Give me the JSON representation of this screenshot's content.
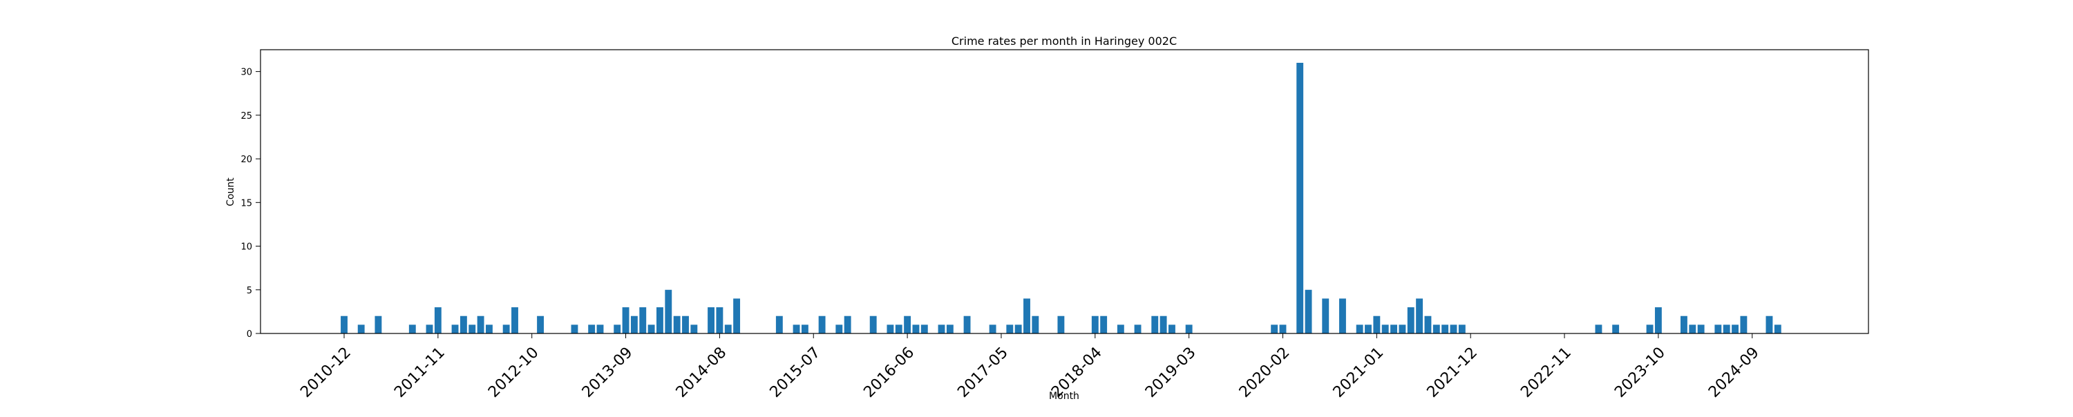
{
  "chart_data": {
    "type": "bar",
    "title": "Crime rates per month in Haringey 002C",
    "xlabel": "Month",
    "ylabel": "Count",
    "ylim": [
      0,
      32.5
    ],
    "yticks": [
      0,
      5,
      10,
      15,
      20,
      25,
      30
    ],
    "xtick_labels": [
      "2010-12",
      "2011-11",
      "2012-10",
      "2013-09",
      "2014-08",
      "2015-07",
      "2016-06",
      "2017-05",
      "2018-04",
      "2019-03",
      "2020-02",
      "2021-01",
      "2021-12",
      "2022-11",
      "2023-10",
      "2024-09"
    ],
    "grid": false,
    "bar_color": "#1f77b4",
    "categories": [
      "2010-12",
      "2011-02",
      "2011-04",
      "2011-08",
      "2011-10",
      "2011-11",
      "2012-01",
      "2012-02",
      "2012-03",
      "2012-04",
      "2012-05",
      "2012-07",
      "2012-08",
      "2012-11",
      "2013-03",
      "2013-05",
      "2013-06",
      "2013-08",
      "2013-09",
      "2013-10",
      "2013-11",
      "2013-12",
      "2014-01",
      "2014-02",
      "2014-03",
      "2014-04",
      "2014-05",
      "2014-07",
      "2014-08",
      "2014-09",
      "2014-10",
      "2015-03",
      "2015-05",
      "2015-06",
      "2015-08",
      "2015-10",
      "2015-11",
      "2016-02",
      "2016-04",
      "2016-05",
      "2016-06",
      "2016-07",
      "2016-08",
      "2016-10",
      "2016-11",
      "2017-01",
      "2017-04",
      "2017-06",
      "2017-07",
      "2017-08",
      "2017-09",
      "2017-12",
      "2018-04",
      "2018-05",
      "2018-07",
      "2018-09",
      "2018-11",
      "2018-12",
      "2019-01",
      "2019-03",
      "2020-01",
      "2020-02",
      "2020-04",
      "2020-05",
      "2020-07",
      "2020-09",
      "2020-11",
      "2020-12",
      "2021-01",
      "2021-02",
      "2021-03",
      "2021-04",
      "2021-05",
      "2021-06",
      "2021-07",
      "2021-08",
      "2021-09",
      "2021-10",
      "2021-11",
      "2023-03",
      "2023-05",
      "2023-09",
      "2023-10",
      "2024-01",
      "2024-02",
      "2024-03",
      "2024-05",
      "2024-06",
      "2024-07",
      "2024-08",
      "2024-11",
      "2024-12"
    ],
    "values": [
      2,
      1,
      2,
      1,
      1,
      3,
      1,
      2,
      1,
      2,
      1,
      1,
      3,
      2,
      1,
      1,
      1,
      1,
      3,
      2,
      3,
      1,
      3,
      5,
      2,
      2,
      1,
      3,
      3,
      1,
      4,
      2,
      1,
      1,
      2,
      1,
      2,
      2,
      1,
      1,
      2,
      1,
      1,
      1,
      1,
      2,
      1,
      1,
      1,
      4,
      2,
      2,
      2,
      2,
      1,
      1,
      2,
      2,
      1,
      1,
      1,
      1,
      31,
      5,
      4,
      4,
      1,
      1,
      2,
      1,
      1,
      1,
      3,
      4,
      2,
      1,
      1,
      1,
      1,
      1,
      1,
      1,
      3,
      2,
      1,
      1,
      1,
      1,
      1,
      2,
      2,
      1
    ]
  }
}
